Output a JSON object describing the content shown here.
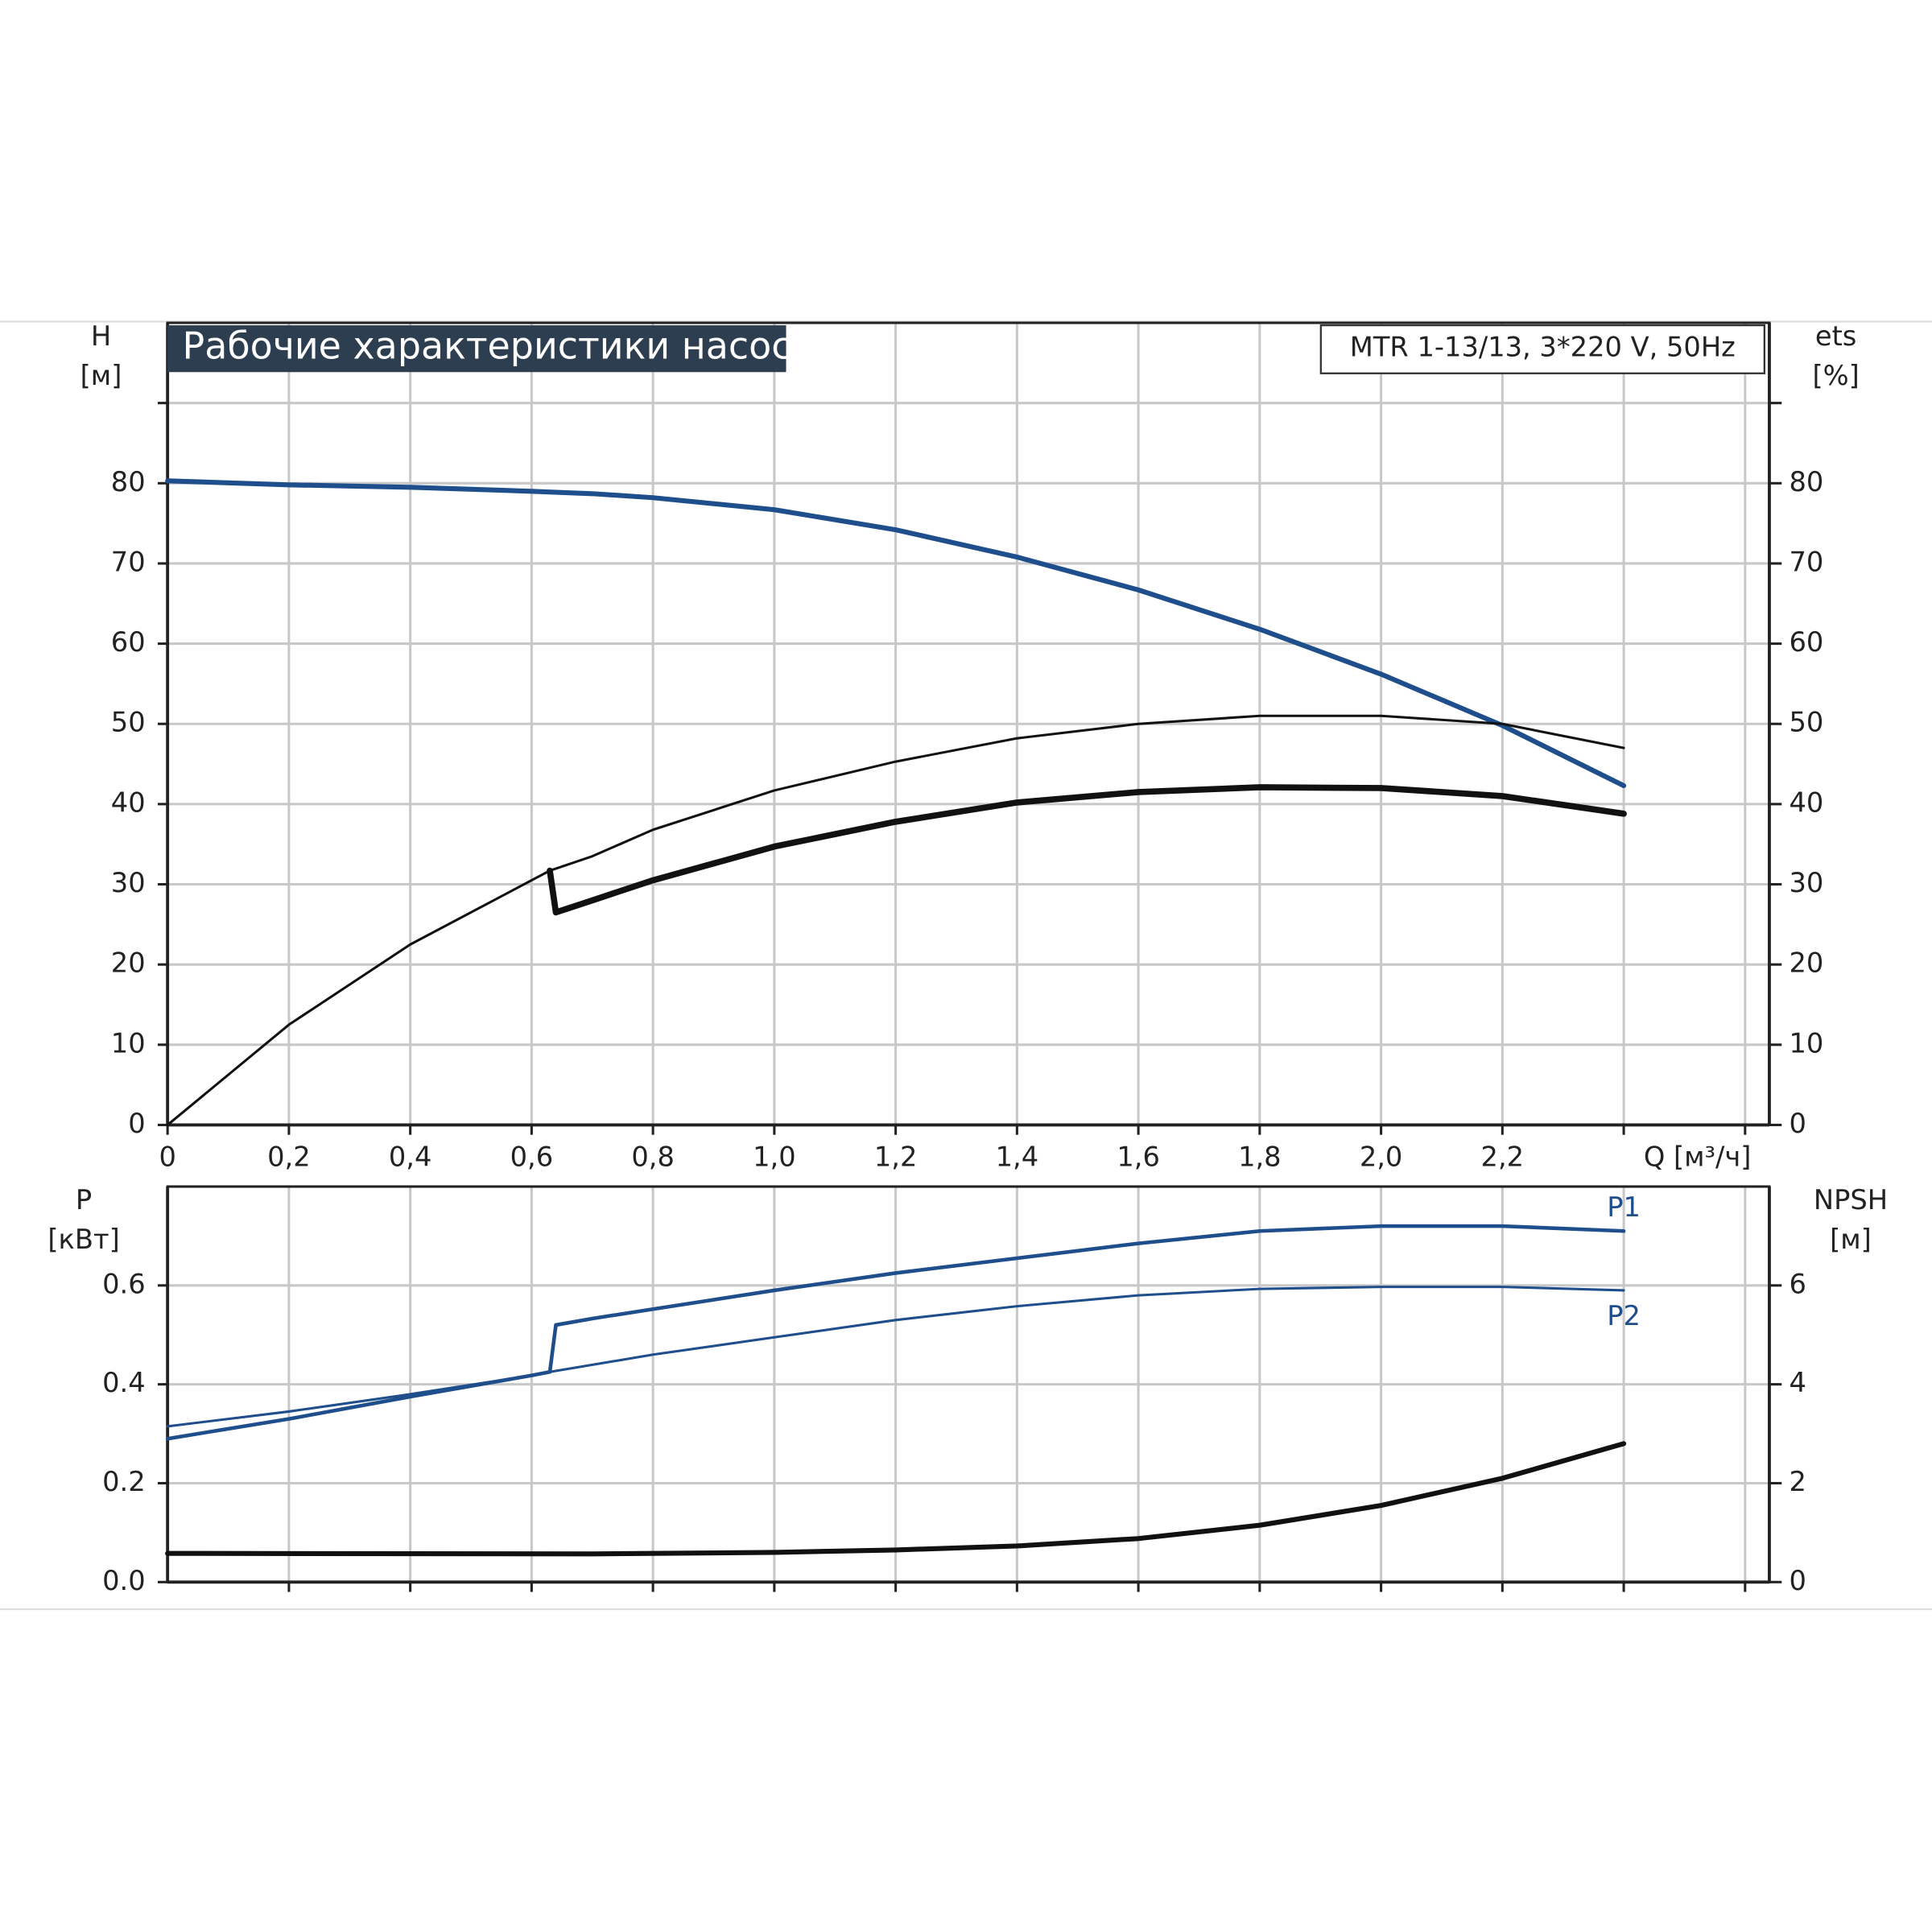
{
  "chart_data": [
    {
      "type": "line",
      "title": "Рабочие характеристики насоса",
      "subtitle": "MTR 1-13/13, 3*220 V, 50Hz",
      "y_label": [
        "H",
        "[м]"
      ],
      "y2_label": [
        "ets",
        "[%]"
      ],
      "x_label": "Q [м³/ч]",
      "xlim": [
        0,
        2.64
      ],
      "ylim": [
        0,
        100
      ],
      "y2lim": [
        0,
        100
      ],
      "xticks": [
        0,
        {
          "value": 0.2,
          "label": "0,2"
        },
        {
          "value": 0.4,
          "label": "0,4"
        },
        {
          "value": 0.6,
          "label": "0,6"
        },
        {
          "value": 0.8,
          "label": "0,8"
        },
        {
          "value": 1.0,
          "label": "1,0"
        },
        {
          "value": 1.2,
          "label": "1,2"
        },
        {
          "value": 1.4,
          "label": "1,4"
        },
        {
          "value": 1.6,
          "label": "1,6"
        },
        {
          "value": 1.8,
          "label": "1,8"
        },
        {
          "value": 2.0,
          "label": "2,0"
        },
        {
          "value": 2.2,
          "label": "2,2"
        },
        {
          "value": 2.4,
          "label": null
        },
        {
          "value": 2.6,
          "label": null
        }
      ],
      "yticks": [
        0,
        10,
        20,
        30,
        40,
        50,
        60,
        70,
        80,
        {
          "value": 90,
          "label": null
        }
      ],
      "y2ticks": [
        0,
        10,
        20,
        30,
        40,
        50,
        60,
        70,
        80,
        {
          "value": 90,
          "label": null
        }
      ],
      "grid": true,
      "series": [
        {
          "color": "#1f4e8c",
          "width": 4,
          "x": [
            0,
            0.2,
            0.4,
            0.6,
            0.7,
            0.8,
            1.0,
            1.2,
            1.4,
            1.6,
            1.8,
            2.0,
            2.2,
            2.4
          ],
          "values": [
            80.3,
            79.8,
            79.5,
            79.0,
            78.7,
            78.2,
            76.7,
            74.2,
            70.8,
            66.7,
            61.8,
            56.2,
            49.8,
            42.3
          ]
        },
        {
          "color": "#111111",
          "width": 2,
          "x": [
            0,
            0.2,
            0.4,
            0.6,
            0.63,
            0.7,
            0.8,
            1.0,
            1.2,
            1.4,
            1.6,
            1.8,
            2.0,
            2.2,
            2.4
          ],
          "values": [
            0,
            12.5,
            22.5,
            30.5,
            31.7,
            33.5,
            36.8,
            41.7,
            45.3,
            48.2,
            50.0,
            51.0,
            51.0,
            50.0,
            47.0
          ]
        },
        {
          "color": "#111111",
          "width": 5,
          "x": [
            0.63,
            0.64,
            0.7,
            0.8,
            1.0,
            1.2,
            1.4,
            1.6,
            1.8,
            2.0,
            2.2,
            2.4
          ],
          "values": [
            31.7,
            26.5,
            28.0,
            30.5,
            34.7,
            37.8,
            40.2,
            41.5,
            42.1,
            42.0,
            41.0,
            38.8
          ],
          "axis": "y2"
        }
      ]
    },
    {
      "type": "line",
      "y_label": [
        "P",
        "[кВт]"
      ],
      "y2_label": [
        "NPSH",
        "[м]"
      ],
      "xlim": [
        0,
        2.64
      ],
      "ylim": [
        0,
        0.8
      ],
      "y2lim": [
        0,
        8
      ],
      "xticks": [
        {
          "value": 0.2,
          "label": null
        },
        {
          "value": 0.4,
          "label": null
        },
        {
          "value": 0.6,
          "label": null
        },
        {
          "value": 0.8,
          "label": null
        },
        {
          "value": 1.0,
          "label": null
        },
        {
          "value": 1.2,
          "label": null
        },
        {
          "value": 1.4,
          "label": null
        },
        {
          "value": 1.6,
          "label": null
        },
        {
          "value": 1.8,
          "label": null
        },
        {
          "value": 2.0,
          "label": null
        },
        {
          "value": 2.2,
          "label": null
        },
        {
          "value": 2.4,
          "label": null
        },
        {
          "value": 2.6,
          "label": null
        }
      ],
      "yticks": [
        {
          "value": 0,
          "label": "0.0"
        },
        0.2,
        0.4,
        0.6
      ],
      "y2ticks": [
        0,
        2,
        4,
        6
      ],
      "grid": true,
      "series": [
        {
          "name": "P1",
          "color": "#1f4e8c",
          "width": 3,
          "x": [
            0,
            0.2,
            0.4,
            0.6,
            0.63,
            0.64,
            0.7,
            0.8,
            1.0,
            1.2,
            1.4,
            1.6,
            1.8,
            2.0,
            2.2,
            2.4
          ],
          "values": [
            0.29,
            0.33,
            0.375,
            0.418,
            0.425,
            0.52,
            0.533,
            0.552,
            0.59,
            0.625,
            0.655,
            0.685,
            0.71,
            0.72,
            0.72,
            0.71
          ]
        },
        {
          "name": "P2",
          "color": "#1f4e8c",
          "width": 2,
          "x": [
            0,
            0.2,
            0.4,
            0.6,
            0.63,
            0.8,
            1.0,
            1.2,
            1.4,
            1.6,
            1.8,
            2.0,
            2.2,
            2.4
          ],
          "values": [
            0.315,
            0.345,
            0.38,
            0.418,
            0.425,
            0.46,
            0.495,
            0.53,
            0.558,
            0.58,
            0.593,
            0.597,
            0.597,
            0.59
          ]
        },
        {
          "color": "#111111",
          "width": 4,
          "x": [
            0,
            0.7,
            1.0,
            1.2,
            1.4,
            1.6,
            1.8,
            2.0,
            2.2,
            2.4
          ],
          "values": [
            0.58,
            0.57,
            0.6,
            0.65,
            0.73,
            0.88,
            1.15,
            1.55,
            2.1,
            2.8
          ],
          "axis": "y2"
        }
      ]
    }
  ]
}
